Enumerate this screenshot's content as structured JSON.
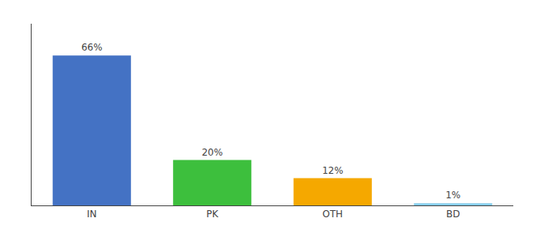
{
  "chart_data": {
    "type": "bar",
    "categories": [
      "IN",
      "PK",
      "OTH",
      "BD"
    ],
    "values": [
      66,
      20,
      12,
      1
    ],
    "value_labels": [
      "66%",
      "20%",
      "12%",
      "1%"
    ],
    "colors": [
      "#4472c4",
      "#3dbf3d",
      "#f5a800",
      "#87ceeb"
    ],
    "ylim": [
      0,
      80
    ],
    "grid": false,
    "data_labels": true,
    "tick_labels": "x"
  }
}
